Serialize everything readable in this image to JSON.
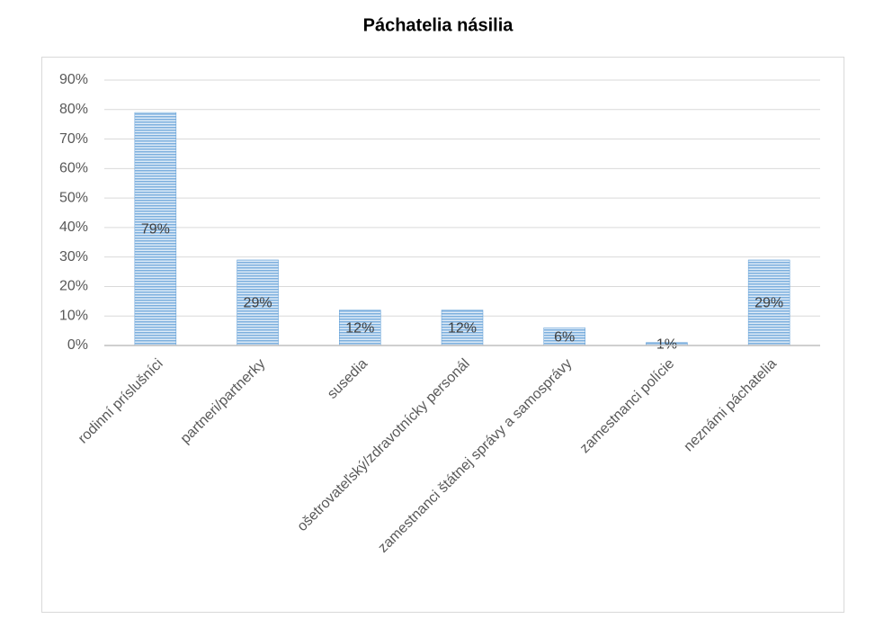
{
  "chart_data": {
    "type": "bar",
    "title": "Páchatelia násilia",
    "categories": [
      "rodinní príslušníci",
      "partneri/partnerky",
      "susedia",
      "ošetrovateľský/zdravotnícky personál",
      "zamestnanci štátnej správy a samosprávy",
      "zamestnanci polície",
      "neznámi páchatelia"
    ],
    "values": [
      79,
      29,
      12,
      12,
      6,
      1,
      29
    ],
    "value_labels": [
      "79%",
      "29%",
      "12%",
      "12%",
      "6%",
      "1%",
      "29%"
    ],
    "color": "#5b9bd5",
    "ylim": [
      0,
      90
    ],
    "yticks": [
      {
        "value": 0,
        "label": "0%"
      },
      {
        "value": 10,
        "label": "10%"
      },
      {
        "value": 20,
        "label": "20%"
      },
      {
        "value": 30,
        "label": "30%"
      },
      {
        "value": 40,
        "label": "40%"
      },
      {
        "value": 50,
        "label": "50%"
      },
      {
        "value": 60,
        "label": "60%"
      },
      {
        "value": 70,
        "label": "70%"
      },
      {
        "value": 80,
        "label": "80%"
      },
      {
        "value": 90,
        "label": "90%"
      }
    ],
    "grid": true
  }
}
